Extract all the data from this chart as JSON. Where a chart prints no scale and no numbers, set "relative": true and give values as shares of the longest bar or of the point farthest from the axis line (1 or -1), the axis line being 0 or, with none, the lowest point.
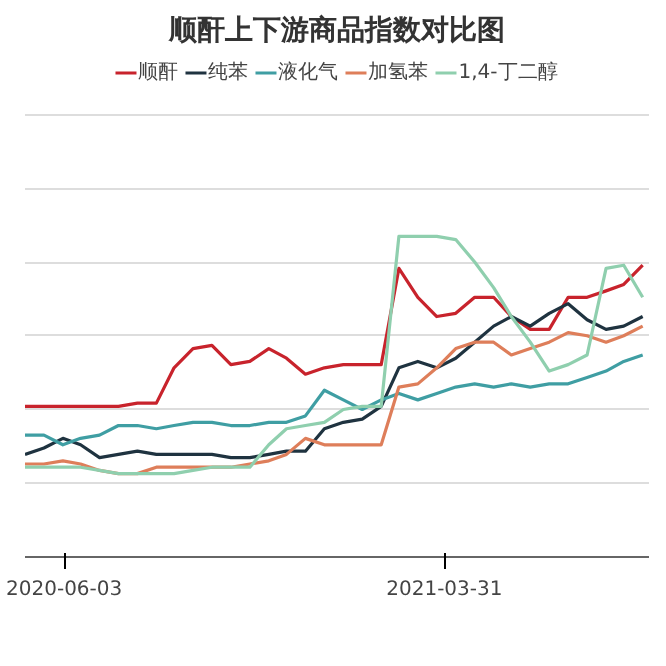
{
  "chart_data": {
    "type": "line",
    "title": "顺酐上下游商品指数对比图",
    "relative": true,
    "legend": "top",
    "grid": "y",
    "x": [
      "2020-05-03",
      "2020-05-18",
      "2020-06-02",
      "2020-06-16",
      "2020-07-01",
      "2020-07-16",
      "2020-07-31",
      "2020-08-15",
      "2020-08-29",
      "2020-09-13",
      "2020-09-28",
      "2020-10-13",
      "2020-10-28",
      "2020-11-12",
      "2020-11-26",
      "2020-12-11",
      "2020-12-26",
      "2021-01-10",
      "2021-01-25",
      "2021-02-09",
      "2021-02-23",
      "2021-03-10",
      "2021-03-25",
      "2021-04-09",
      "2021-04-24",
      "2021-05-09",
      "2021-05-23",
      "2021-06-07",
      "2021-06-22",
      "2021-07-07",
      "2021-07-22",
      "2021-08-06",
      "2021-08-20",
      "2021-09-04"
    ],
    "xlim": [
      "2020-05-03",
      "2021-09-09"
    ],
    "xticks": [
      "2020-06-03",
      "2021-03-31"
    ],
    "series": [
      {
        "name": "顺酐",
        "color": "#c8232c",
        "values": [
          0.47,
          0.47,
          0.47,
          0.47,
          0.47,
          0.47,
          0.48,
          0.48,
          0.59,
          0.65,
          0.66,
          0.6,
          0.61,
          0.65,
          0.62,
          0.57,
          0.59,
          0.6,
          0.6,
          0.6,
          0.9,
          0.81,
          0.75,
          0.76,
          0.81,
          0.81,
          0.75,
          0.71,
          0.71,
          0.81,
          0.81,
          0.83,
          0.85,
          0.91
        ]
      },
      {
        "name": "纯苯",
        "color": "#1f3340",
        "values": [
          0.32,
          0.34,
          0.37,
          0.35,
          0.31,
          0.32,
          0.33,
          0.32,
          0.32,
          0.32,
          0.32,
          0.31,
          0.31,
          0.32,
          0.33,
          0.33,
          0.4,
          0.42,
          0.43,
          0.47,
          0.59,
          0.61,
          0.59,
          0.62,
          0.67,
          0.72,
          0.75,
          0.72,
          0.76,
          0.79,
          0.74,
          0.71,
          0.72,
          0.75
        ]
      },
      {
        "name": "液化气",
        "color": "#3f9ea3",
        "values": [
          0.38,
          0.38,
          0.35,
          0.37,
          0.38,
          0.41,
          0.41,
          0.4,
          0.41,
          0.42,
          0.42,
          0.41,
          0.41,
          0.42,
          0.42,
          0.44,
          0.52,
          0.49,
          0.46,
          0.49,
          0.51,
          0.49,
          0.51,
          0.53,
          0.54,
          0.53,
          0.54,
          0.53,
          0.54,
          0.54,
          0.56,
          0.58,
          0.61,
          0.63
        ]
      },
      {
        "name": "加氢苯",
        "color": "#de7e5a",
        "values": [
          0.29,
          0.29,
          0.3,
          0.29,
          0.27,
          0.26,
          0.26,
          0.28,
          0.28,
          0.28,
          0.28,
          0.28,
          0.29,
          0.3,
          0.32,
          0.37,
          0.35,
          0.35,
          0.35,
          0.35,
          0.53,
          0.54,
          0.59,
          0.65,
          0.67,
          0.67,
          0.63,
          0.65,
          0.67,
          0.7,
          0.69,
          0.67,
          0.69,
          0.72
        ]
      },
      {
        "name": "1,4-丁二醇",
        "color": "#8fcfae",
        "values": [
          0.28,
          0.28,
          0.28,
          0.28,
          0.27,
          0.26,
          0.26,
          0.26,
          0.26,
          0.27,
          0.28,
          0.28,
          0.28,
          0.35,
          0.4,
          0.41,
          0.42,
          0.46,
          0.47,
          0.47,
          1.0,
          1.0,
          1.0,
          0.99,
          0.92,
          0.84,
          0.75,
          0.67,
          0.58,
          0.6,
          0.63,
          0.9,
          0.91,
          0.81
        ]
      }
    ]
  }
}
